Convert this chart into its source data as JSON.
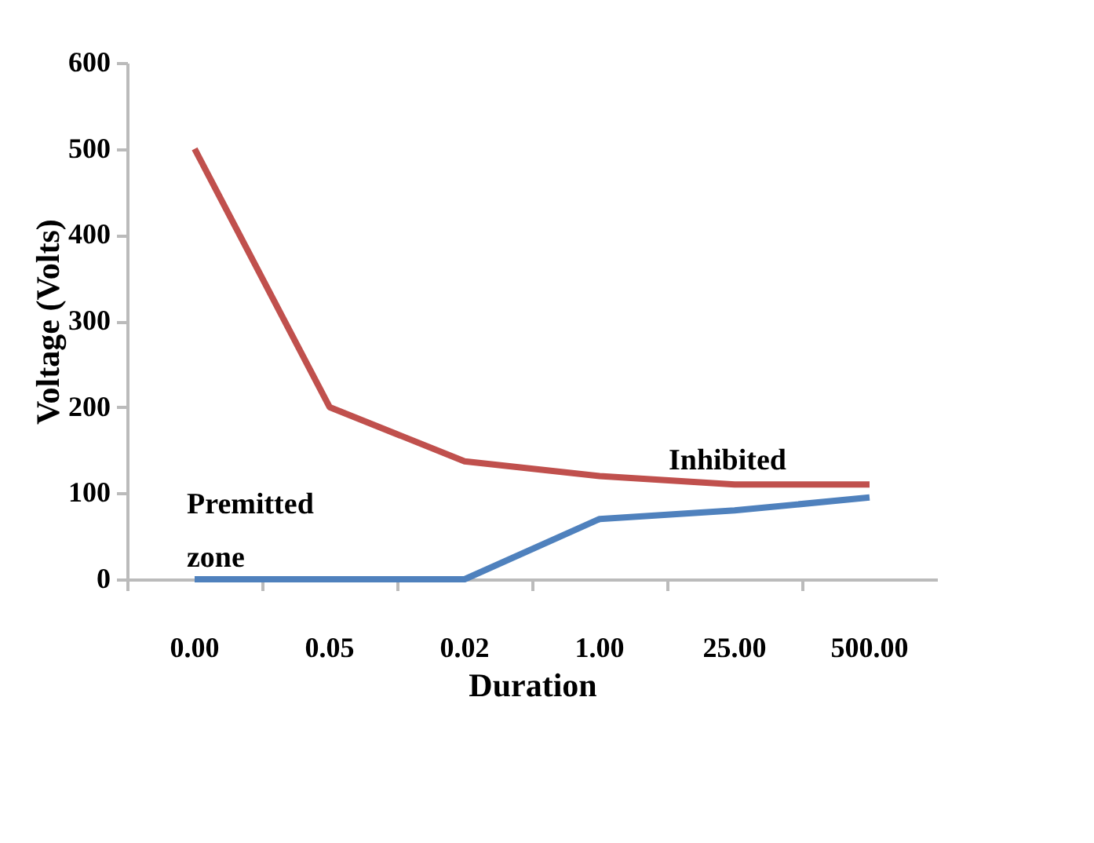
{
  "chart_data": {
    "type": "line",
    "xlabel": "Duration",
    "ylabel": "Voltage (Volts)",
    "categories": [
      "0.00",
      "0.05",
      "0.02",
      "1.00",
      "25.00",
      "500.00"
    ],
    "series": [
      {
        "color": "#c0504d",
        "values": [
          500,
          200,
          137,
          120,
          110,
          110
        ]
      },
      {
        "color": "#4f81bd",
        "values": [
          0,
          0,
          0,
          70,
          80,
          95
        ]
      }
    ],
    "ylim": [
      0,
      600
    ],
    "yticks": [
      0,
      100,
      200,
      300,
      400,
      500,
      600
    ],
    "grid": false,
    "annotations": [
      "Inhibited",
      "Premitted zone"
    ]
  }
}
